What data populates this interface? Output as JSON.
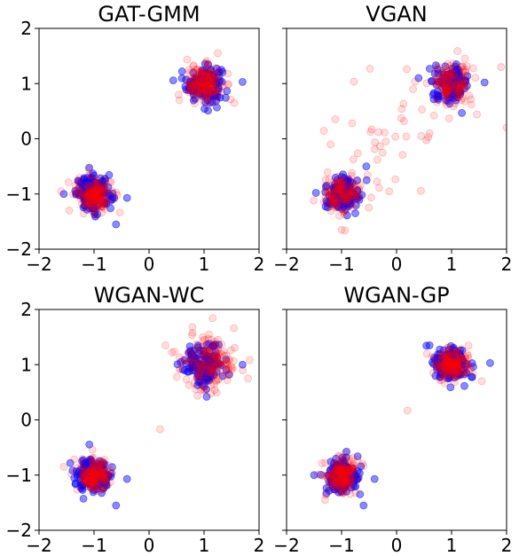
{
  "chart_data": [
    {
      "type": "scatter",
      "title": "GAT-GMM",
      "xlim": [
        -2,
        2
      ],
      "ylim": [
        -2,
        2
      ],
      "xticks": [
        "−2",
        "−1",
        "0",
        "1",
        "2"
      ],
      "yticks": [
        "−2",
        "−1",
        "0",
        "1",
        "2"
      ],
      "show_xticklabels": true,
      "show_yticklabels": true,
      "grid": false,
      "series": [
        {
          "color": "#0000ff",
          "alpha": 0.45,
          "clusters": [
            {
              "center": [
                1.0,
                1.0
              ],
              "spread": 0.16,
              "count": 150
            },
            {
              "center": [
                -1.0,
                -1.0
              ],
              "spread": 0.16,
              "count": 150
            }
          ],
          "extra": [
            [
              1.7,
              1.03
            ],
            [
              -0.6,
              -1.55
            ],
            [
              -0.4,
              -1.07
            ],
            [
              0.6,
              1.22
            ],
            [
              -1.55,
              -1.0
            ]
          ]
        },
        {
          "color": "#ff0000",
          "alpha": 0.13,
          "clusters": [
            {
              "center": [
                1.0,
                1.0
              ],
              "spread": 0.16,
              "count": 160
            },
            {
              "center": [
                -1.0,
                -1.0
              ],
              "spread": 0.16,
              "count": 160
            }
          ],
          "extra": [
            [
              1.25,
              1.55
            ],
            [
              1.55,
              0.65
            ],
            [
              -1.6,
              -0.95
            ],
            [
              -1.45,
              -1.3
            ],
            [
              0.55,
              0.7
            ]
          ]
        }
      ]
    },
    {
      "type": "scatter",
      "title": "VGAN",
      "xlim": [
        -2,
        2
      ],
      "ylim": [
        -2,
        2
      ],
      "xticks": [
        "−2",
        "−1",
        "0",
        "1",
        "2"
      ],
      "yticks": [
        "−2",
        "−1",
        "0",
        "1",
        "2"
      ],
      "show_xticklabels": true,
      "show_yticklabels": false,
      "grid": false,
      "series": [
        {
          "color": "#0000ff",
          "alpha": 0.45,
          "clusters": [
            {
              "center": [
                1.0,
                1.0
              ],
              "spread": 0.15,
              "count": 150
            },
            {
              "center": [
                -1.0,
                -1.0
              ],
              "spread": 0.15,
              "count": 150
            }
          ],
          "extra": [
            [
              1.6,
              1.02
            ],
            [
              -0.55,
              -0.5
            ],
            [
              -0.75,
              -1.35
            ],
            [
              0.4,
              1.1
            ]
          ]
        },
        {
          "color": "#ff0000",
          "alpha": 0.13,
          "clusters": [
            {
              "center": [
                1.0,
                1.0
              ],
              "spread": 0.18,
              "count": 130
            },
            {
              "center": [
                -1.0,
                -1.0
              ],
              "spread": 0.18,
              "count": 130
            },
            {
              "center": [
                0.0,
                0.0
              ],
              "spread": 0.55,
              "count": 40
            }
          ],
          "extra": [
            [
              -1.2,
              -0.1
            ],
            [
              2.0,
              0.2
            ],
            [
              1.9,
              1.3
            ],
            [
              -1.0,
              -1.65
            ],
            [
              0.3,
              0.9
            ],
            [
              0.6,
              0.1
            ]
          ]
        }
      ]
    },
    {
      "type": "scatter",
      "title": "WGAN-WC",
      "xlim": [
        -2,
        2
      ],
      "ylim": [
        -2,
        2
      ],
      "xticks": [
        "−2",
        "−1",
        "0",
        "1",
        "2"
      ],
      "yticks": [
        "−2",
        "−1",
        "0",
        "1",
        "2"
      ],
      "show_xticklabels": true,
      "show_yticklabels": true,
      "grid": false,
      "series": [
        {
          "color": "#0000ff",
          "alpha": 0.45,
          "clusters": [
            {
              "center": [
                1.0,
                1.0
              ],
              "spread": 0.18,
              "count": 150
            },
            {
              "center": [
                -1.0,
                -1.0
              ],
              "spread": 0.16,
              "count": 150
            }
          ],
          "extra": [
            [
              1.7,
              1.0
            ],
            [
              -0.6,
              -1.55
            ],
            [
              -0.4,
              -1.07
            ],
            [
              0.65,
              0.9
            ]
          ]
        },
        {
          "color": "#ff0000",
          "alpha": 0.13,
          "clusters": [
            {
              "center": [
                1.1,
                1.05
              ],
              "spread": 0.25,
              "count": 160
            },
            {
              "center": [
                -1.0,
                -1.0
              ],
              "spread": 0.14,
              "count": 150
            }
          ],
          "extra": [
            [
              0.2,
              -0.17
            ],
            [
              0.3,
              1.35
            ],
            [
              1.8,
              0.75
            ],
            [
              -1.55,
              -0.85
            ]
          ]
        }
      ]
    },
    {
      "type": "scatter",
      "title": "WGAN-GP",
      "xlim": [
        -2,
        2
      ],
      "ylim": [
        -2,
        2
      ],
      "xticks": [
        "−2",
        "−1",
        "0",
        "1",
        "2"
      ],
      "yticks": [
        "−2",
        "−1",
        "0",
        "1",
        "2"
      ],
      "show_xticklabels": true,
      "show_yticklabels": false,
      "grid": false,
      "series": [
        {
          "color": "#0000ff",
          "alpha": 0.45,
          "clusters": [
            {
              "center": [
                1.0,
                1.0
              ],
              "spread": 0.16,
              "count": 150
            },
            {
              "center": [
                -1.0,
                -1.0
              ],
              "spread": 0.16,
              "count": 150
            }
          ],
          "extra": [
            [
              1.7,
              1.03
            ],
            [
              -0.6,
              -1.55
            ],
            [
              -0.4,
              -1.07
            ],
            [
              0.6,
              1.35
            ],
            [
              -1.5,
              -1.0
            ]
          ]
        },
        {
          "color": "#ff0000",
          "alpha": 0.13,
          "clusters": [
            {
              "center": [
                1.0,
                1.0
              ],
              "spread": 0.15,
              "count": 160
            },
            {
              "center": [
                -1.0,
                -1.0
              ],
              "spread": 0.15,
              "count": 160
            }
          ],
          "extra": [
            [
              0.2,
              0.17
            ],
            [
              0.55,
              1.2
            ],
            [
              -1.3,
              -1.45
            ],
            [
              1.55,
              0.7
            ]
          ]
        }
      ]
    }
  ]
}
